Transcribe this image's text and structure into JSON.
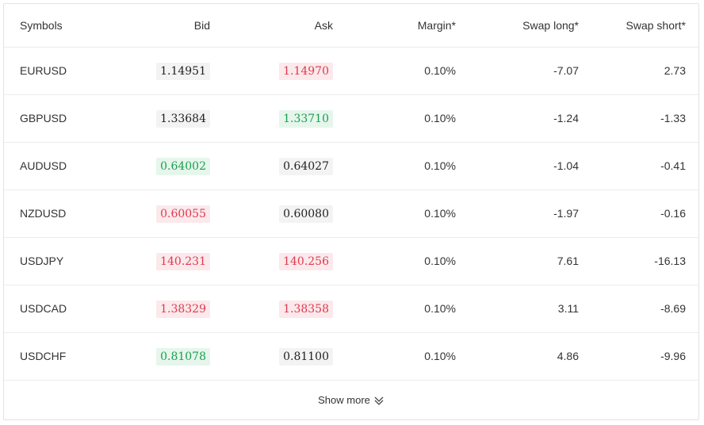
{
  "table": {
    "headers": {
      "symbols": "Symbols",
      "bid": "Bid",
      "ask": "Ask",
      "margin": "Margin*",
      "swap_long": "Swap long*",
      "swap_short": "Swap short*"
    },
    "rows": [
      {
        "symbol": "EURUSD",
        "bid": "1.14951",
        "bid_trend": "neutral",
        "ask": "1.14970",
        "ask_trend": "down",
        "margin": "0.10%",
        "swap_long": "-7.07",
        "swap_short": "2.73"
      },
      {
        "symbol": "GBPUSD",
        "bid": "1.33684",
        "bid_trend": "neutral",
        "ask": "1.33710",
        "ask_trend": "up",
        "margin": "0.10%",
        "swap_long": "-1.24",
        "swap_short": "-1.33"
      },
      {
        "symbol": "AUDUSD",
        "bid": "0.64002",
        "bid_trend": "up",
        "ask": "0.64027",
        "ask_trend": "neutral",
        "margin": "0.10%",
        "swap_long": "-1.04",
        "swap_short": "-0.41"
      },
      {
        "symbol": "NZDUSD",
        "bid": "0.60055",
        "bid_trend": "down",
        "ask": "0.60080",
        "ask_trend": "neutral",
        "margin": "0.10%",
        "swap_long": "-1.97",
        "swap_short": "-0.16"
      },
      {
        "symbol": "USDJPY",
        "bid": "140.231",
        "bid_trend": "down",
        "ask": "140.256",
        "ask_trend": "down",
        "margin": "0.10%",
        "swap_long": "7.61",
        "swap_short": "-16.13"
      },
      {
        "symbol": "USDCAD",
        "bid": "1.38329",
        "bid_trend": "down",
        "ask": "1.38358",
        "ask_trend": "down",
        "margin": "0.10%",
        "swap_long": "3.11",
        "swap_short": "-8.69"
      },
      {
        "symbol": "USDCHF",
        "bid": "0.81078",
        "bid_trend": "up",
        "ask": "0.81100",
        "ask_trend": "neutral",
        "margin": "0.10%",
        "swap_long": "4.86",
        "swap_short": "-9.96"
      }
    ]
  },
  "footer": {
    "show_more_label": "Show more",
    "show_more_icon": "double-chevron-down-icon"
  },
  "colors": {
    "up_text": "#1aa04e",
    "up_bg": "#e6f6ec",
    "down_text": "#e0394d",
    "down_bg": "#fbe9ec",
    "neutral_bg": "#f3f3f3"
  }
}
